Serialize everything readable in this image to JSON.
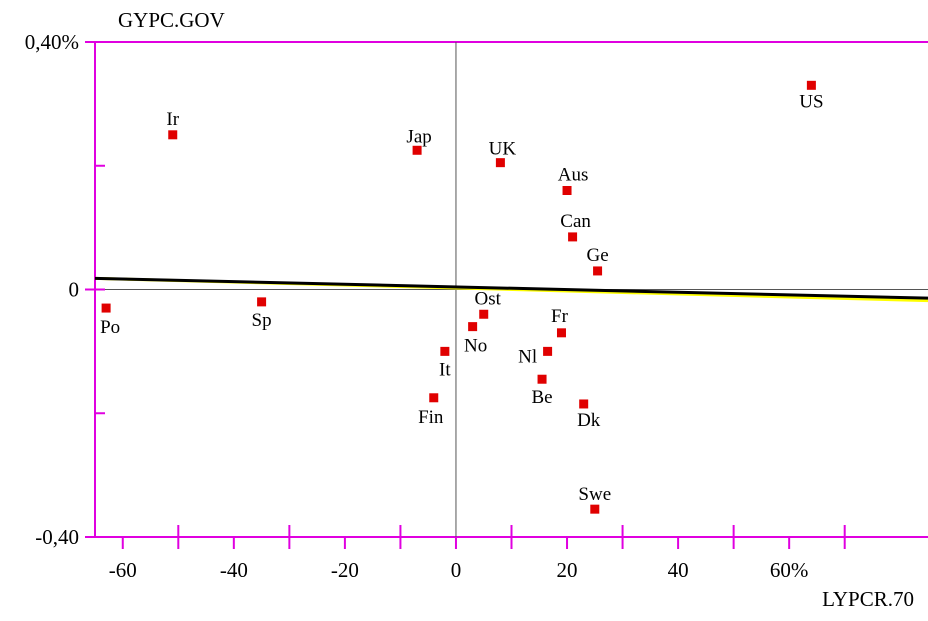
{
  "chart_data": {
    "type": "scatter",
    "title": "",
    "xlabel": "LYPCR.70",
    "ylabel": "GYPC.GOV",
    "x_range": [
      -65,
      85
    ],
    "y_range": [
      -0.4,
      0.4
    ],
    "x_tick_labels": [
      "-60",
      "-40",
      "-20",
      "0",
      "20",
      "40",
      "60%"
    ],
    "y_tick_labels": [
      "0,40%",
      "0",
      "-0,40"
    ],
    "grid": false,
    "colors": {
      "frame": "#e000e0",
      "point": "#e00000",
      "fit_line": "#000000",
      "fit_line_alt": "#ffff00",
      "reference_line": "#555555"
    },
    "points": [
      {
        "label": "US",
        "x": 64,
        "y": 0.33
      },
      {
        "label": "Ir",
        "x": -51,
        "y": 0.25
      },
      {
        "label": "Jap",
        "x": -7,
        "y": 0.225
      },
      {
        "label": "UK",
        "x": 8,
        "y": 0.205
      },
      {
        "label": "Aus",
        "x": 20,
        "y": 0.16
      },
      {
        "label": "Can",
        "x": 21,
        "y": 0.085
      },
      {
        "label": "Ge",
        "x": 25.5,
        "y": 0.03
      },
      {
        "label": "Po",
        "x": -63,
        "y": -0.03
      },
      {
        "label": "Sp",
        "x": -35,
        "y": -0.02
      },
      {
        "label": "Ost",
        "x": 5,
        "y": -0.04
      },
      {
        "label": "Fr",
        "x": 19,
        "y": -0.07
      },
      {
        "label": "No",
        "x": 3,
        "y": -0.06
      },
      {
        "label": "Nl",
        "x": 16.5,
        "y": -0.1
      },
      {
        "label": "It",
        "x": -2,
        "y": -0.1
      },
      {
        "label": "Be",
        "x": 15.5,
        "y": -0.145
      },
      {
        "label": "Fin",
        "x": -4,
        "y": -0.175
      },
      {
        "label": "Dk",
        "x": 23,
        "y": -0.185
      },
      {
        "label": "Swe",
        "x": 25,
        "y": -0.355
      }
    ],
    "fit_line": {
      "x": [
        -65,
        85
      ],
      "y": [
        0.018,
        -0.014
      ]
    },
    "fit_line_alt": {
      "x": [
        -65,
        85
      ],
      "y": [
        0.018,
        -0.018
      ]
    }
  }
}
